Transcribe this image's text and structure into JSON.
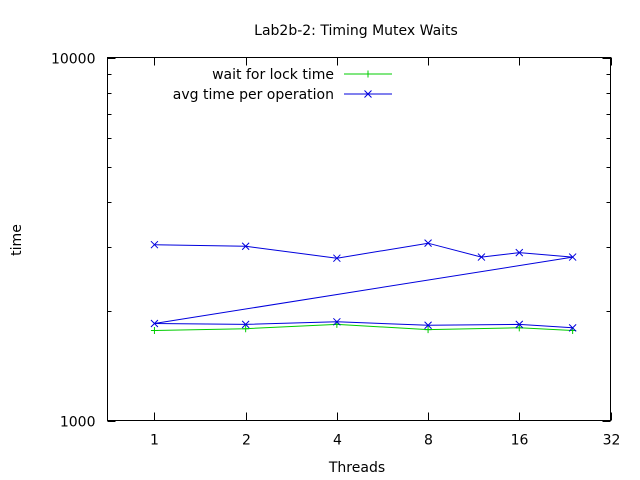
{
  "chart_data": {
    "type": "line",
    "title": "Lab2b-2: Timing Mutex Waits",
    "xlabel": "Threads",
    "ylabel": "time",
    "xscale": "log2",
    "yscale": "log10",
    "xlim": [
      0.7,
      32
    ],
    "ylim": [
      1000,
      10000
    ],
    "x_ticks": [
      1,
      2,
      4,
      8,
      16,
      32
    ],
    "x_tick_labels": [
      "1",
      "2",
      "4",
      "8",
      "16",
      "32"
    ],
    "y_tick_labels": [
      "1000",
      "10000"
    ],
    "legend_position": "top-center",
    "grid": false,
    "series": [
      {
        "name": "wait for lock time",
        "color": "#00cc00",
        "marker": "plus",
        "x": [
          1,
          2,
          4,
          8,
          16,
          24
        ],
        "y": [
          1770,
          1790,
          1840,
          1780,
          1800,
          1770
        ]
      },
      {
        "name": "avg time per operation",
        "color": "#0000dd",
        "marker": "cross",
        "x": [
          1,
          2,
          4,
          8,
          12,
          16,
          24,
          1,
          2,
          4,
          8,
          16,
          24
        ],
        "y": [
          3050,
          3020,
          2800,
          3080,
          2820,
          2900,
          2820,
          1850,
          1840,
          1870,
          1830,
          1840,
          1800
        ]
      }
    ]
  }
}
